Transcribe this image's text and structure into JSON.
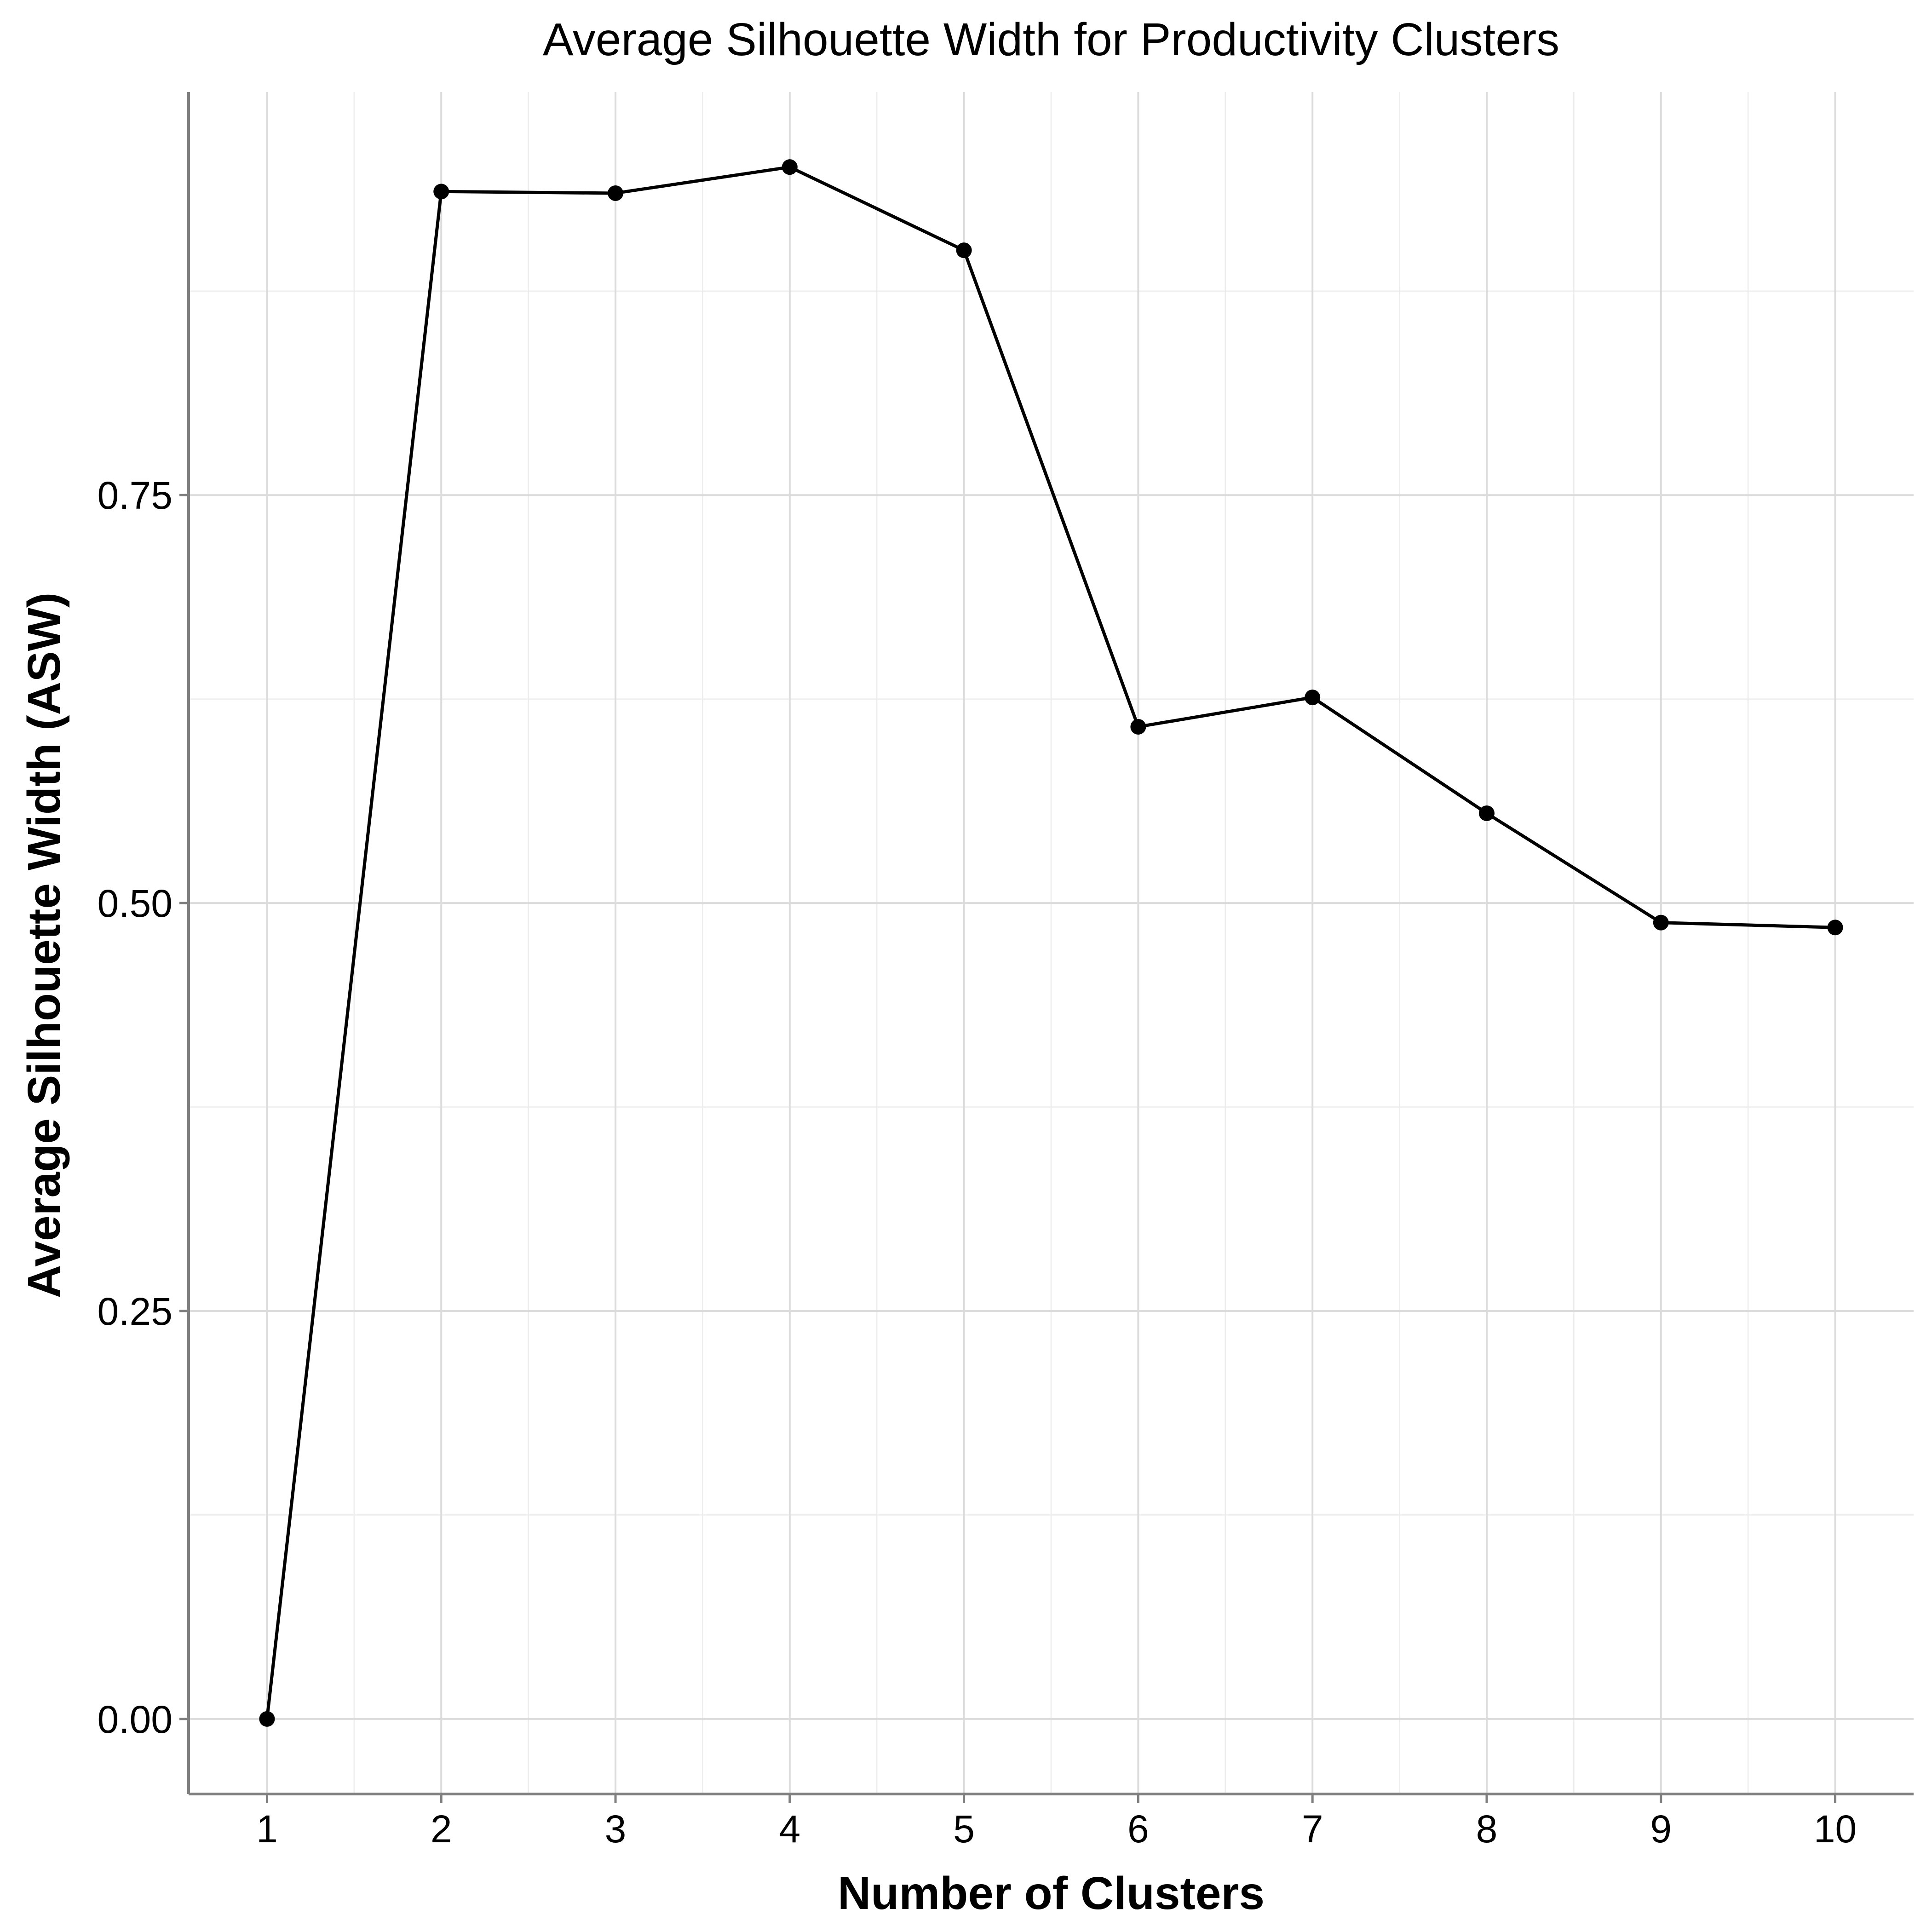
{
  "chart_data": {
    "type": "line",
    "title": "Average Silhouette Width for Productivity Clusters",
    "xlabel": "Number of Clusters",
    "ylabel": "Average Silhouette Width (ASW)",
    "x": [
      1,
      2,
      3,
      4,
      5,
      6,
      7,
      8,
      9,
      10
    ],
    "values": [
      0.0,
      0.936,
      0.935,
      0.951,
      0.9,
      0.608,
      0.626,
      0.555,
      0.488,
      0.485
    ],
    "x_ticks": [
      "1",
      "2",
      "3",
      "4",
      "5",
      "6",
      "7",
      "8",
      "9",
      "10"
    ],
    "y_ticks": [
      "0.00",
      "0.25",
      "0.50",
      "0.75"
    ],
    "y_tick_values": [
      0.0,
      0.25,
      0.5,
      0.75
    ],
    "xlim": [
      0.55,
      10.45
    ],
    "ylim": [
      -0.046,
      0.997
    ],
    "grid": true,
    "legend": "none",
    "colors": {
      "line": "#000000",
      "point": "#000000",
      "grid": "#dcdcdc",
      "axis": "#7f7f7f"
    }
  }
}
